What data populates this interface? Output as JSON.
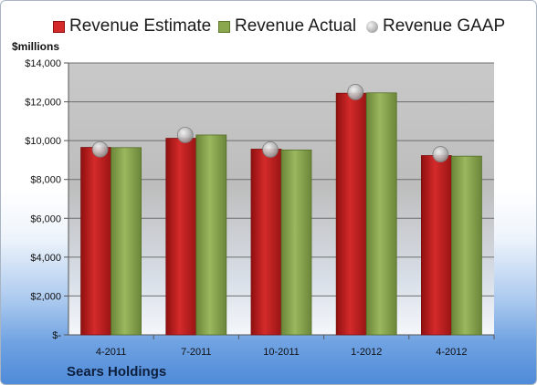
{
  "chart_data": {
    "type": "bar",
    "title": "",
    "company": "Sears Holdings",
    "ylabel": "$millions",
    "categories": [
      "4-2011",
      "7-2011",
      "10-2011",
      "1-2012",
      "4-2012"
    ],
    "series": [
      {
        "name": "Revenue Estimate",
        "kind": "bar",
        "color": "#d42a2a",
        "values": [
          9650,
          10120,
          9560,
          12440,
          9230
        ]
      },
      {
        "name": "Revenue Actual",
        "kind": "bar",
        "color": "#8aa74e",
        "values": [
          9640,
          10290,
          9520,
          12460,
          9200
        ]
      },
      {
        "name": "Revenue GAAP",
        "kind": "marker",
        "color": "#b7b7b7",
        "values": [
          9550,
          10290,
          9540,
          12500,
          9300
        ]
      }
    ],
    "ylim": [
      0,
      14000
    ],
    "yticks": [
      0,
      2000,
      4000,
      6000,
      8000,
      10000,
      12000,
      14000
    ],
    "ytick_labels": [
      "$-",
      "$2,000",
      "$4,000",
      "$6,000",
      "$8,000",
      "$10,000",
      "$12,000",
      "$14,000"
    ],
    "grid": true,
    "legend_position": "top"
  }
}
